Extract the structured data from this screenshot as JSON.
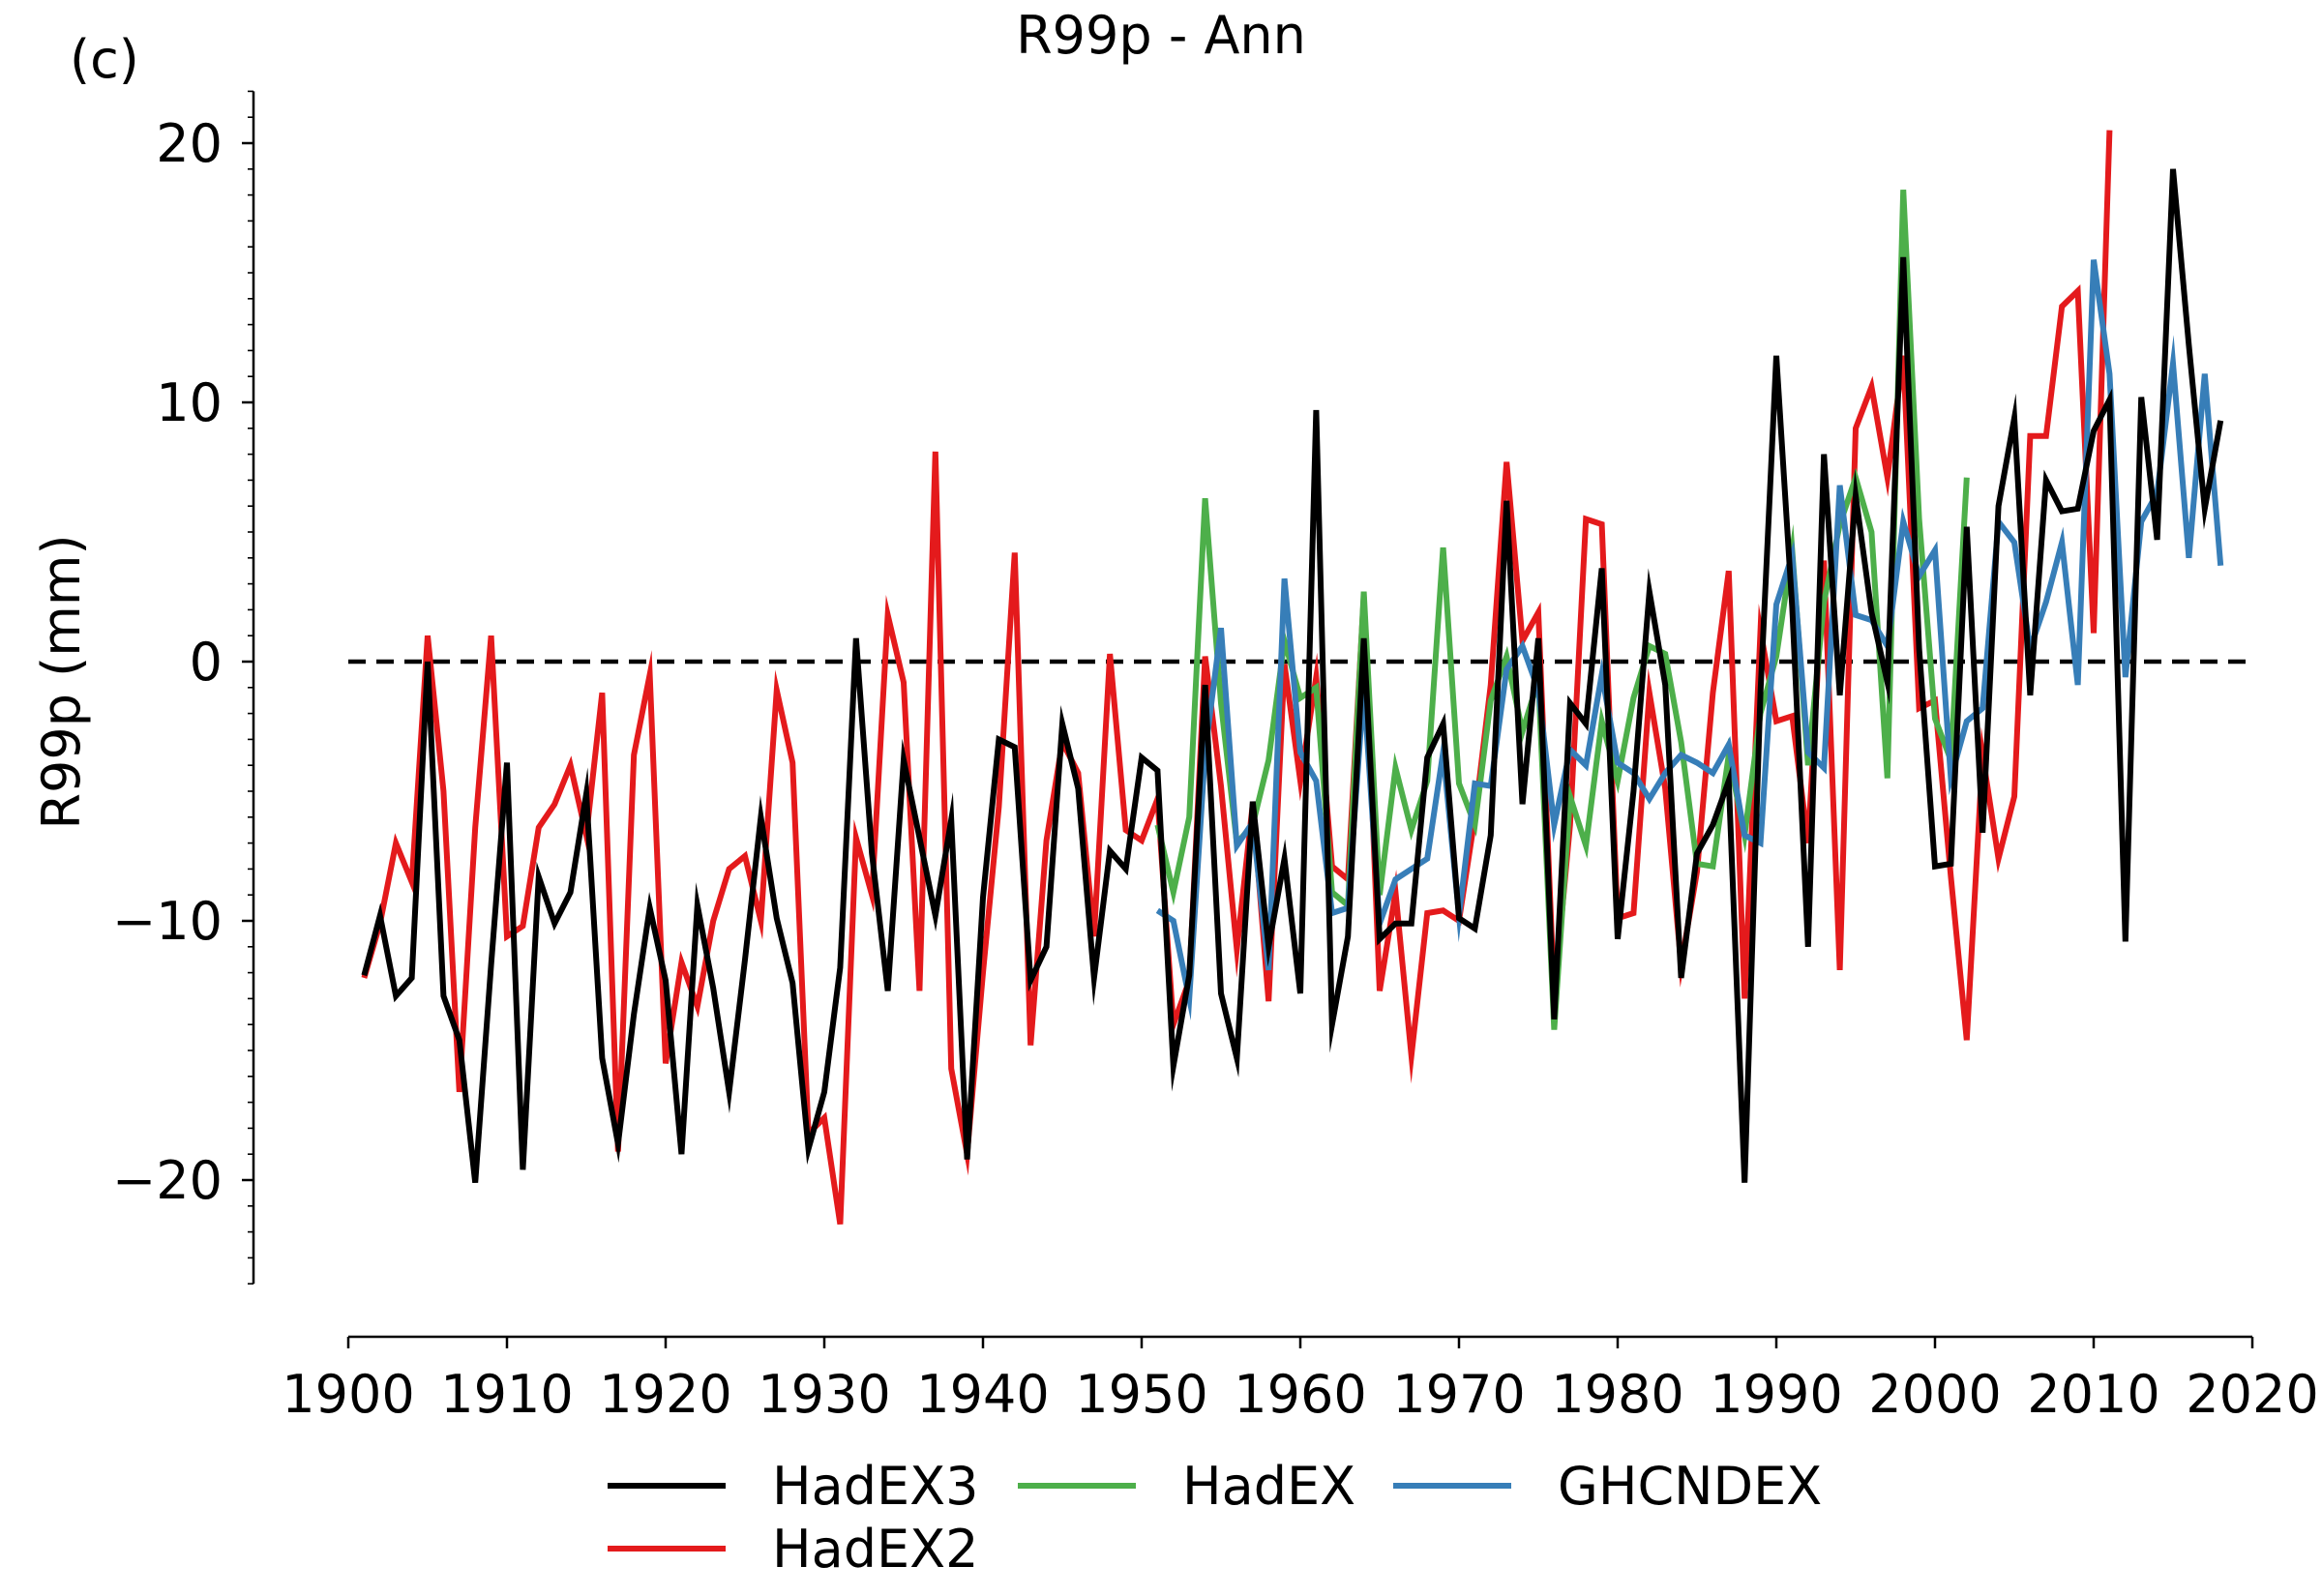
{
  "chart_data": {
    "type": "line",
    "panel_label": "(c)",
    "title": "R99p - Ann",
    "xlabel": "",
    "ylabel": "R99p (mm)",
    "xlim": [
      1900,
      2020
    ],
    "ylim": [
      -24,
      22
    ],
    "xticks": [
      1900,
      1910,
      1920,
      1930,
      1940,
      1950,
      1960,
      1970,
      1980,
      1990,
      2000,
      2010,
      2020
    ],
    "yticks": [
      -20,
      -10,
      0,
      10,
      20
    ],
    "ytick_labels": [
      "−20",
      "−10",
      "0",
      "10",
      "20"
    ],
    "grid": false,
    "legend": "bottom",
    "reference_line": 0,
    "series": [
      {
        "name": "HadEX2",
        "color": "#e41a1c",
        "x_start": 1901,
        "values": [
          -12.2,
          -10.1,
          -7.0,
          -8.5,
          1.0,
          -5.0,
          -16.6,
          -6.4,
          1.0,
          -10.6,
          -10.2,
          -6.4,
          -5.5,
          -4.0,
          -6.7,
          -1.2,
          -18.9,
          -3.6,
          -0.5,
          -15.5,
          -11.6,
          -13.3,
          -10.0,
          -8.0,
          -7.5,
          -10.0,
          -1.1,
          -3.9,
          -18.2,
          -17.6,
          -21.7,
          -6.8,
          -9.0,
          1.8,
          -0.8,
          -12.7,
          8.1,
          -15.7,
          -19.0,
          -12.0,
          -5.6,
          4.2,
          -14.8,
          -6.9,
          -3.1,
          -4.3,
          -10.6,
          0.3,
          -6.5,
          -6.9,
          -5.3,
          -14.0,
          -12.3,
          0.2,
          -4.8,
          -11.1,
          -5.5,
          -13.1,
          -0.1,
          -4.6,
          -0.6,
          -7.9,
          -8.4,
          2.5,
          -12.7,
          -8.9,
          -15.2,
          -9.7,
          -9.6,
          -10.0,
          -6.0,
          -0.9,
          7.7,
          0.8,
          1.9,
          -12.9,
          -6.3,
          5.5,
          5.3,
          -9.9,
          -9.7,
          -1.2,
          -4.9,
          -11.7,
          -8.1,
          -1.2,
          3.5,
          -13.0,
          1.2,
          -2.3,
          -2.1,
          -7.0,
          3.9,
          -11.9,
          9.0,
          10.6,
          7.1,
          11.8,
          -1.8,
          -1.5,
          -8.3,
          -14.6,
          -3.6,
          -7.6,
          -5.2,
          8.7,
          8.7,
          13.7,
          14.3,
          1.1,
          20.5
        ]
      },
      {
        "name": "HadEX",
        "color": "#4daf4a",
        "x_start": 1951,
        "values": [
          -6.3,
          -8.9,
          -6.0,
          6.3,
          -1.6,
          -7.0,
          -6.3,
          -3.8,
          0.8,
          -1.4,
          -1.0,
          -8.9,
          -9.4,
          2.7,
          -9.0,
          -4.1,
          -6.5,
          -4.6,
          4.4,
          -4.7,
          -6.3,
          -1.5,
          0.2,
          -2.7,
          -0.7,
          -14.2,
          -5.2,
          -7.1,
          -2.3,
          -4.6,
          -1.4,
          0.6,
          0.3,
          -3.1,
          -7.8,
          -7.9,
          -3.6,
          -6.7,
          -2.0,
          0.2,
          4.3,
          -4.0,
          2.3,
          5.3,
          7.1,
          5.0,
          -4.5,
          18.2,
          5.5,
          -2.2,
          -3.8,
          7.1
        ]
      },
      {
        "name": "GHCNDEX",
        "color": "#377eb8",
        "x_start": 1951,
        "values": [
          -9.6,
          -10.0,
          -13.0,
          -3.5,
          1.3,
          -7.1,
          -6.2,
          -11.9,
          3.2,
          -3.5,
          -4.6,
          -9.7,
          -9.5,
          -1.0,
          -10.1,
          -8.4,
          -8.0,
          -7.6,
          -3.5,
          -9.8,
          -4.7,
          -4.8,
          -0.3,
          0.6,
          -1.1,
          -6.3,
          -3.4,
          -4.0,
          -0.5,
          -3.9,
          -4.3,
          -5.3,
          -4.3,
          -3.6,
          -3.9,
          -4.3,
          -3.2,
          -6.7,
          -7.0,
          2.2,
          4.1,
          -3.5,
          -4.1,
          6.8,
          1.8,
          1.6,
          0.6,
          5.4,
          3.3,
          4.3,
          -4.5,
          -2.3,
          -1.8,
          5.4,
          4.6,
          0.5,
          2.3,
          4.6,
          -0.9,
          15.5,
          11.1,
          -0.6,
          5.4,
          6.5,
          11.5,
          4.0,
          11.1,
          3.7
        ]
      },
      {
        "name": "HadEX3",
        "color": "#000000",
        "x_start": 1901,
        "values": [
          -12.1,
          -9.8,
          -12.9,
          -12.2,
          0.0,
          -12.9,
          -14.6,
          -20.1,
          -11.7,
          -3.9,
          -19.6,
          -8.3,
          -10.1,
          -8.9,
          -5.1,
          -15.3,
          -18.6,
          -13.6,
          -9.5,
          -12.3,
          -19.0,
          -9.4,
          -12.6,
          -16.6,
          -11.5,
          -6.0,
          -9.9,
          -12.4,
          -18.8,
          -16.6,
          -11.8,
          0.9,
          -7.4,
          -12.7,
          -3.8,
          -6.8,
          -9.8,
          -6.1,
          -19.2,
          -9.1,
          -3.0,
          -3.3,
          -12.3,
          -11.0,
          -2.4,
          -4.9,
          -12.2,
          -7.3,
          -8.0,
          -3.7,
          -4.2,
          -15.6,
          -12.1,
          -0.9,
          -12.8,
          -15.3,
          -5.4,
          -11.0,
          -7.6,
          -12.8,
          9.7,
          -14.0,
          -10.6,
          0.9,
          -10.7,
          -10.1,
          -10.1,
          -3.7,
          -2.4,
          -9.9,
          -10.3,
          -6.7,
          6.2,
          -5.5,
          0.9,
          -13.8,
          -1.6,
          -2.4,
          3.6,
          -10.7,
          -5.0,
          2.7,
          -0.9,
          -12.2,
          -7.4,
          -6.3,
          -4.6,
          -20.1,
          -1.2,
          11.8,
          2.1,
          -11.0,
          8.0,
          -1.3,
          6.4,
          1.9,
          -0.8,
          15.6,
          0.5,
          -7.9,
          -7.8,
          5.2,
          -6.6,
          6.0,
          9.4,
          -1.3,
          7.0,
          5.8,
          5.9,
          8.9,
          10.1,
          -10.8,
          10.2,
          4.7,
          19.0,
          12.2,
          5.9,
          9.3
        ]
      }
    ]
  }
}
